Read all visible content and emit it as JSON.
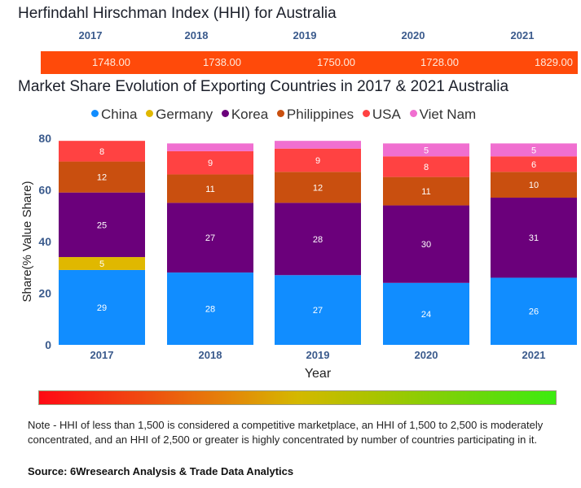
{
  "hhi": {
    "title": "Herfindahl Hirschman Index (HHI) for Australia",
    "years": [
      "2017",
      "2018",
      "2019",
      "2020",
      "2021"
    ],
    "values": [
      "1748.00",
      "1738.00",
      "1750.00",
      "1728.00",
      "1829.00"
    ],
    "bar_color": "#ff4a0a"
  },
  "chart_data": {
    "type": "bar",
    "stacked": true,
    "title": "Market Share Evolution of Exporting Countries in 2017 & 2021 Australia",
    "xlabel": "Year",
    "ylabel": "Share(% Value Share)",
    "ylim": [
      0,
      80
    ],
    "yticks": [
      0,
      20,
      40,
      60,
      80
    ],
    "categories": [
      "2017",
      "2018",
      "2019",
      "2020",
      "2021"
    ],
    "legend_position": "top-center",
    "grid": false,
    "series": [
      {
        "name": "China",
        "color": "#118dff",
        "values": [
          29,
          28,
          27,
          24,
          26
        ],
        "labels": [
          "29",
          "28",
          "27",
          "24",
          "26"
        ]
      },
      {
        "name": "Germany",
        "color": "#e0b800",
        "values": [
          5,
          0,
          0,
          0,
          0
        ],
        "labels": [
          "5",
          "",
          "",
          "",
          ""
        ]
      },
      {
        "name": "Korea",
        "color": "#6b007b",
        "values": [
          25,
          27,
          28,
          30,
          31
        ],
        "labels": [
          "25",
          "27",
          "28",
          "30",
          "31"
        ]
      },
      {
        "name": "Philippines",
        "color": "#c94f0f",
        "values": [
          12,
          11,
          12,
          11,
          10
        ],
        "labels": [
          "12",
          "11",
          "12",
          "11",
          "10"
        ]
      },
      {
        "name": "USA",
        "color": "#ff4242",
        "values": [
          8,
          9,
          9,
          8,
          6
        ],
        "labels": [
          "8",
          "9",
          "9",
          "8",
          "6"
        ]
      },
      {
        "name": "Viet Nam",
        "color": "#f06fd0",
        "values": [
          0,
          3,
          3,
          5,
          5
        ],
        "labels": [
          "",
          "",
          "",
          "5",
          "5"
        ]
      }
    ]
  },
  "scale": {
    "from_color": "#ff0a14",
    "mid_color": "#d4b800",
    "to_color": "#3cec10"
  },
  "note": "Note - HHI of less than 1,500 is considered a competitive marketplace, an HHI of 1,500 to 2,500 is moderately concentrated, and an HHI of 2,500 or greater is highly concentrated by number of countries participating in it.",
  "source": "Source: 6Wresearch Analysis & Trade Data Analytics"
}
